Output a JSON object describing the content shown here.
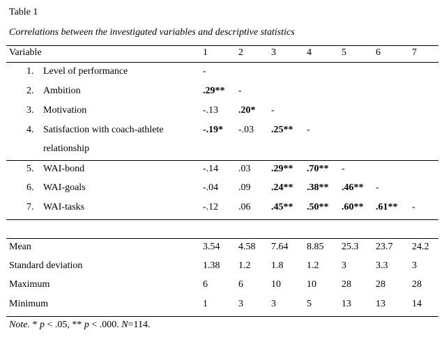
{
  "table": {
    "label": "Table 1",
    "caption": "Correlations between the investigated variables and descriptive statistics",
    "header": {
      "variable": "Variable",
      "columns": [
        "1",
        "2",
        "3",
        "4",
        "5",
        "6",
        "7"
      ]
    },
    "variables": [
      {
        "num": "1.",
        "label": "Level of performance",
        "label_cont": "",
        "cells": [
          {
            "v": "-",
            "b": false
          }
        ]
      },
      {
        "num": "2.",
        "label": "Ambition",
        "label_cont": "",
        "cells": [
          {
            "v": ".29**",
            "b": true
          },
          {
            "v": "-",
            "b": false
          }
        ]
      },
      {
        "num": "3.",
        "label": "Motivation",
        "label_cont": "",
        "cells": [
          {
            "v": "-.13",
            "b": false
          },
          {
            "v": ".20*",
            "b": true
          },
          {
            "v": "-",
            "b": false
          }
        ]
      },
      {
        "num": "4.",
        "label": "Satisfaction with coach-athlete",
        "label_cont": "relationship",
        "cells": [
          {
            "v": "-.19*",
            "b": true
          },
          {
            "v": "-.03",
            "b": false
          },
          {
            "v": ".25**",
            "b": true
          },
          {
            "v": "-",
            "b": false
          }
        ]
      },
      {
        "num": "5.",
        "label": "WAI-bond",
        "label_cont": "",
        "cells": [
          {
            "v": "-.14",
            "b": false
          },
          {
            "v": ".03",
            "b": false
          },
          {
            "v": ".29**",
            "b": true
          },
          {
            "v": ".70**",
            "b": true
          },
          {
            "v": "-",
            "b": false
          }
        ]
      },
      {
        "num": "6.",
        "label": "WAI-goals",
        "label_cont": "",
        "cells": [
          {
            "v": "-.04",
            "b": false
          },
          {
            "v": ".09",
            "b": false
          },
          {
            "v": ".24**",
            "b": true
          },
          {
            "v": ".38**",
            "b": true
          },
          {
            "v": ".46**",
            "b": true
          },
          {
            "v": "-",
            "b": false
          }
        ]
      },
      {
        "num": "7.",
        "label": "WAI-tasks",
        "label_cont": "",
        "cells": [
          {
            "v": "-.12",
            "b": false
          },
          {
            "v": ".06",
            "b": false
          },
          {
            "v": ".45**",
            "b": true
          },
          {
            "v": ".50**",
            "b": true
          },
          {
            "v": ".60**",
            "b": true
          },
          {
            "v": ".61**",
            "b": true
          },
          {
            "v": "-",
            "b": false
          }
        ]
      }
    ],
    "stats": [
      {
        "label": "Mean",
        "values": [
          "3.54",
          "4.58",
          "7.64",
          "8.85",
          "25.3",
          "23.7",
          "24.2"
        ]
      },
      {
        "label": "Standard deviation",
        "values": [
          "1.38",
          "1.2",
          "1.8",
          "1.2",
          "3",
          "3.3",
          "3"
        ]
      },
      {
        "label": "Maximum",
        "values": [
          "6",
          "6",
          "10",
          "10",
          "28",
          "28",
          "28"
        ]
      },
      {
        "label": "Minimum",
        "values": [
          "1",
          "3",
          "3",
          "5",
          "13",
          "13",
          "14"
        ]
      }
    ],
    "note": {
      "note_word": "Note.",
      "s1": " * ",
      "p1": "p",
      "s2": " < .05, ** ",
      "p2": "p",
      "s3": " < .000.  ",
      "n": "N",
      "s4": "=114."
    }
  }
}
